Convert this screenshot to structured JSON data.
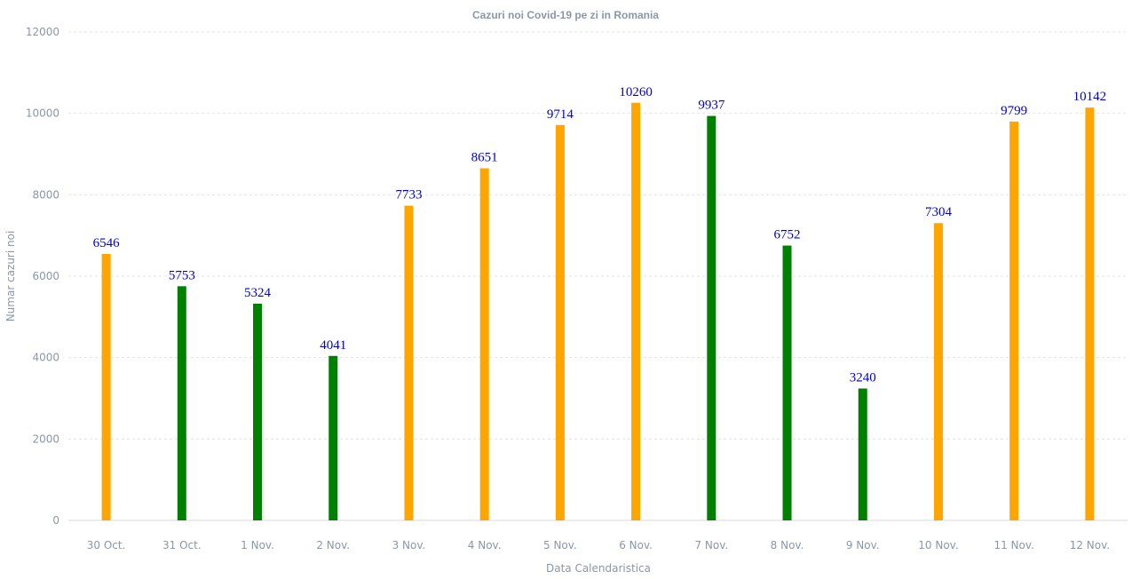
{
  "chart_data": {
    "type": "bar",
    "title": "Cazuri noi Covid-19 pe zi in Romania",
    "xlabel": "Data Calendaristica",
    "ylabel": "Numar cazuri noi",
    "ylim": [
      0,
      12000
    ],
    "yticks": [
      0,
      2000,
      4000,
      6000,
      8000,
      10000,
      12000
    ],
    "grid": true,
    "categories": [
      "30 Oct.",
      "31 Oct.",
      "1 Nov.",
      "2 Nov.",
      "3 Nov.",
      "4 Nov.",
      "5 Nov.",
      "6 Nov.",
      "7 Nov.",
      "8 Nov.",
      "9 Nov.",
      "10 Nov.",
      "11 Nov.",
      "12 Nov."
    ],
    "values": [
      6546,
      5753,
      5324,
      4041,
      7733,
      8651,
      9714,
      10260,
      9937,
      6752,
      3240,
      7304,
      9799,
      10142
    ],
    "bar_colors": [
      "#ffa500",
      "#008000",
      "#008000",
      "#008000",
      "#ffa500",
      "#ffa500",
      "#ffa500",
      "#ffa500",
      "#008000",
      "#008000",
      "#008000",
      "#ffa500",
      "#ffa500",
      "#ffa500"
    ],
    "data_label_color": "#0000cc"
  }
}
